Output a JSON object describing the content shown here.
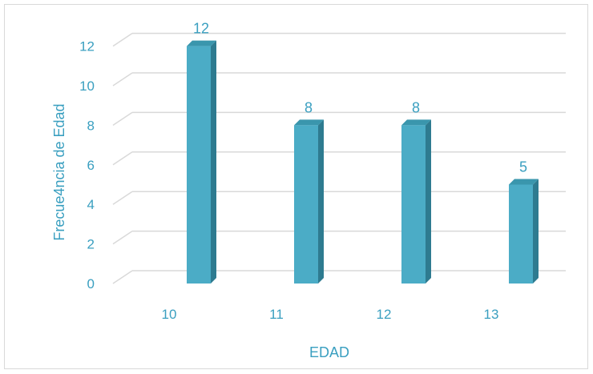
{
  "chart_data": {
    "type": "bar",
    "categories": [
      "10",
      "11",
      "12",
      "13"
    ],
    "values": [
      12,
      8,
      8,
      5
    ],
    "title": "",
    "xlabel": "EDAD",
    "ylabel": "Frecue4ncia de Edad",
    "ylim": [
      0,
      12
    ],
    "yticks": [
      "0",
      "2",
      "4",
      "6",
      "8",
      "10",
      "12"
    ],
    "data_labels": [
      "12",
      "8",
      "8",
      "5"
    ],
    "grid": true,
    "legend": "none",
    "bar_color": "#4bacc6",
    "bar_side_color": "#2e7b90",
    "bar_top_color": "#3a96ad",
    "text_color": "#3a9fc0",
    "grid_color": "#d9d9d9"
  }
}
